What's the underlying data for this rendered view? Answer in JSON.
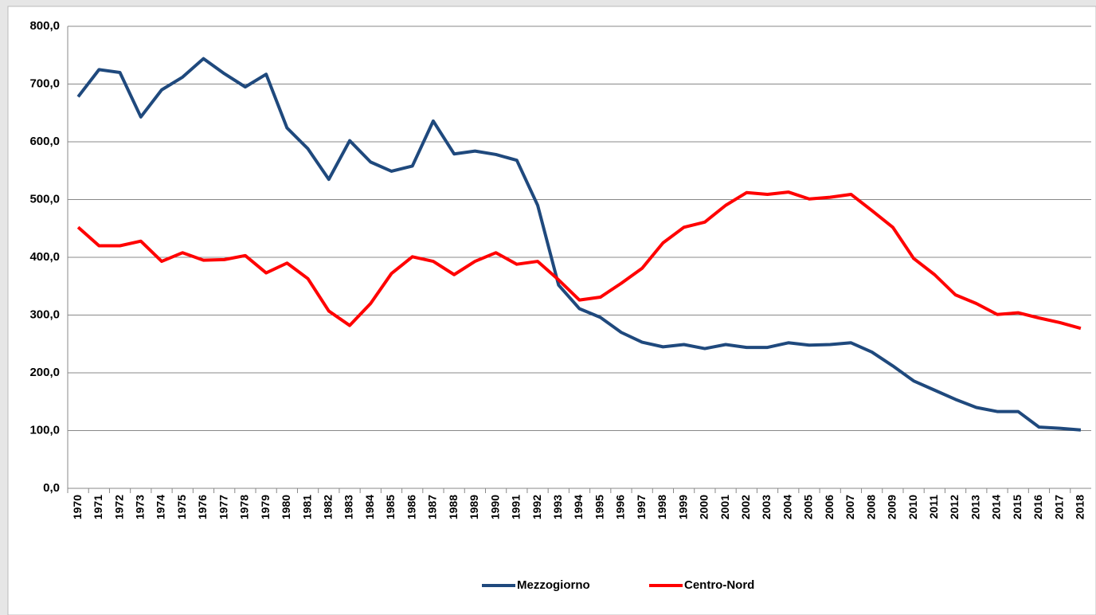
{
  "chart_data": {
    "type": "line",
    "categories": [
      "1970",
      "1971",
      "1972",
      "1973",
      "1974",
      "1975",
      "1976",
      "1977",
      "1978",
      "1979",
      "1980",
      "1981",
      "1982",
      "1983",
      "1984",
      "1985",
      "1986",
      "1987",
      "1988",
      "1989",
      "1990",
      "1991",
      "1992",
      "1993",
      "1994",
      "1995",
      "1996",
      "1997",
      "1998",
      "1999",
      "2000",
      "2001",
      "2002",
      "2003",
      "2004",
      "2005",
      "2006",
      "2007",
      "2008",
      "2009",
      "2010",
      "2011",
      "2012",
      "2013",
      "2014",
      "2015",
      "2016",
      "2017",
      "2018"
    ],
    "series": [
      {
        "name": "Mezzogiorno",
        "color": "#1f497d",
        "values": [
          678,
          725,
          720,
          643,
          690,
          712,
          744,
          718,
          695,
          717,
          624,
          588,
          535,
          602,
          565,
          549,
          558,
          636,
          579,
          584,
          578,
          568,
          490,
          352,
          311,
          296,
          270,
          253,
          245,
          249,
          242,
          249,
          244,
          244,
          252,
          248,
          249,
          252,
          236,
          212,
          186,
          170,
          154,
          140,
          133,
          133,
          106,
          104,
          101
        ]
      },
      {
        "name": "Centro-Nord",
        "color": "#ff0000",
        "values": [
          452,
          420,
          420,
          428,
          393,
          408,
          395,
          396,
          403,
          373,
          390,
          363,
          307,
          282,
          320,
          372,
          401,
          393,
          370,
          393,
          408,
          388,
          393,
          361,
          326,
          331,
          355,
          381,
          425,
          452,
          461,
          490,
          512,
          509,
          513,
          501,
          504,
          509,
          481,
          452,
          398,
          370,
          335,
          320,
          301,
          304,
          295,
          287,
          277
        ]
      }
    ],
    "ylim": [
      0,
      800
    ],
    "yticks": [
      {
        "value": 0,
        "label": "0,0"
      },
      {
        "value": 100,
        "label": "100,0"
      },
      {
        "value": 200,
        "label": "200,0"
      },
      {
        "value": 300,
        "label": "300,0"
      },
      {
        "value": 400,
        "label": "400,0"
      },
      {
        "value": 500,
        "label": "500,0"
      },
      {
        "value": 600,
        "label": "600,0"
      },
      {
        "value": 700,
        "label": "700,0"
      },
      {
        "value": 800,
        "label": "800,0"
      }
    ],
    "grid": true,
    "legend": "bottom"
  }
}
